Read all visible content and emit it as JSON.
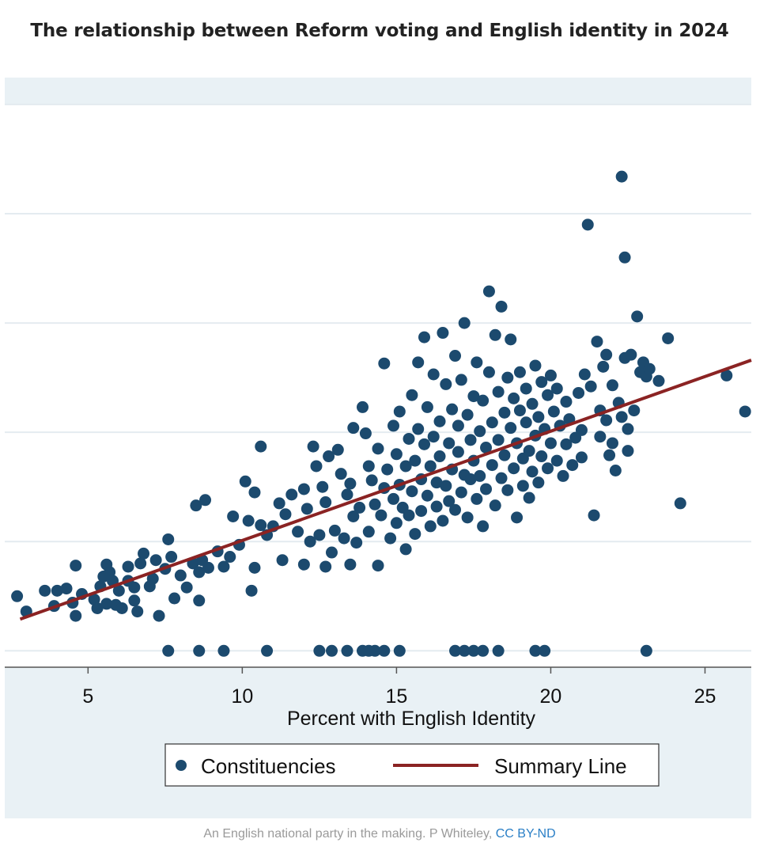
{
  "header": {
    "title": "The relationship between Reform voting and English identity in 2024"
  },
  "caption": {
    "text": "An English national party in the making. P Whiteley, ",
    "license_link": "CC BY-ND"
  },
  "colors": {
    "points": "#1c4a6e",
    "summary_line": "#8b2323",
    "figure_background": "#e9f1f5",
    "gridlines": "#e4ebf0"
  },
  "chart_data": {
    "type": "scatter",
    "title": "",
    "xlabel": "Percent with English Identity",
    "ylabel": "",
    "xlim": [
      2.3,
      26.5
    ],
    "ylim": [
      -1.5,
      50
    ],
    "xticks": [
      5,
      10,
      15,
      20,
      25
    ],
    "ygrid": [
      0,
      10,
      20,
      30,
      40,
      50
    ],
    "grid": true,
    "legend": {
      "position": "bottom",
      "entries": [
        "Constituencies",
        "Summary Line"
      ]
    },
    "series": [
      {
        "name": "Constituencies",
        "kind": "points",
        "points": [
          [
            2.7,
            5
          ],
          [
            3.0,
            3.6
          ],
          [
            3.6,
            5.5
          ],
          [
            3.9,
            4.1
          ],
          [
            4.0,
            5.5
          ],
          [
            4.3,
            5.7
          ],
          [
            4.5,
            4.4
          ],
          [
            4.6,
            7.8
          ],
          [
            4.6,
            3.2
          ],
          [
            4.8,
            5.2
          ],
          [
            5.2,
            4.7
          ],
          [
            5.3,
            3.9
          ],
          [
            5.4,
            5.9
          ],
          [
            5.5,
            6.8
          ],
          [
            5.6,
            4.3
          ],
          [
            5.6,
            7.9
          ],
          [
            5.7,
            7.2
          ],
          [
            5.8,
            6.4
          ],
          [
            5.9,
            4.2
          ],
          [
            6.0,
            5.5
          ],
          [
            6.1,
            3.9
          ],
          [
            6.3,
            6.4
          ],
          [
            6.3,
            7.7
          ],
          [
            6.5,
            5.8
          ],
          [
            6.5,
            4.6
          ],
          [
            6.6,
            3.6
          ],
          [
            6.7,
            8.0
          ],
          [
            6.8,
            8.9
          ],
          [
            7.0,
            5.9
          ],
          [
            7.1,
            6.6
          ],
          [
            7.2,
            8.3
          ],
          [
            7.3,
            3.2
          ],
          [
            7.5,
            7.5
          ],
          [
            7.6,
            10.2
          ],
          [
            7.7,
            8.6
          ],
          [
            7.8,
            4.8
          ],
          [
            8.0,
            6.9
          ],
          [
            8.2,
            5.8
          ],
          [
            8.4,
            8.0
          ],
          [
            8.5,
            13.3
          ],
          [
            8.6,
            4.6
          ],
          [
            8.6,
            7.2
          ],
          [
            8.7,
            8.3
          ],
          [
            8.8,
            13.8
          ],
          [
            8.9,
            7.6
          ],
          [
            9.2,
            9.1
          ],
          [
            9.4,
            7.7
          ],
          [
            9.6,
            8.6
          ],
          [
            9.7,
            12.3
          ],
          [
            9.9,
            9.7
          ],
          [
            10.1,
            15.5
          ],
          [
            10.2,
            11.9
          ],
          [
            10.3,
            5.5
          ],
          [
            10.4,
            7.6
          ],
          [
            10.4,
            14.5
          ],
          [
            10.6,
            11.5
          ],
          [
            10.6,
            18.7
          ],
          [
            10.8,
            10.6
          ],
          [
            11.0,
            11.4
          ],
          [
            11.2,
            13.5
          ],
          [
            11.3,
            8.3
          ],
          [
            11.4,
            12.5
          ],
          [
            11.6,
            14.3
          ],
          [
            11.8,
            10.9
          ],
          [
            12.0,
            7.9
          ],
          [
            12.0,
            14.8
          ],
          [
            12.1,
            13.0
          ],
          [
            12.2,
            10.0
          ],
          [
            12.3,
            18.7
          ],
          [
            12.4,
            16.9
          ],
          [
            12.5,
            10.6
          ],
          [
            12.6,
            15.0
          ],
          [
            12.7,
            13.6
          ],
          [
            12.7,
            7.7
          ],
          [
            12.8,
            17.8
          ],
          [
            12.9,
            9.0
          ],
          [
            13.0,
            11.0
          ],
          [
            13.1,
            18.4
          ],
          [
            13.2,
            16.2
          ],
          [
            13.3,
            10.3
          ],
          [
            13.4,
            14.3
          ],
          [
            13.5,
            15.3
          ],
          [
            13.5,
            7.9
          ],
          [
            13.6,
            20.4
          ],
          [
            13.6,
            12.3
          ],
          [
            13.7,
            9.9
          ],
          [
            13.8,
            13.1
          ],
          [
            13.9,
            22.3
          ],
          [
            14.0,
            19.9
          ],
          [
            14.1,
            16.9
          ],
          [
            14.1,
            10.9
          ],
          [
            14.2,
            15.6
          ],
          [
            14.3,
            13.4
          ],
          [
            14.4,
            18.5
          ],
          [
            14.4,
            7.8
          ],
          [
            14.5,
            12.4
          ],
          [
            14.6,
            14.9
          ],
          [
            14.6,
            26.3
          ],
          [
            14.7,
            16.6
          ],
          [
            14.8,
            10.3
          ],
          [
            14.9,
            13.9
          ],
          [
            14.9,
            20.6
          ],
          [
            15.0,
            11.7
          ],
          [
            15.0,
            18.0
          ],
          [
            15.1,
            15.2
          ],
          [
            15.1,
            21.9
          ],
          [
            15.2,
            13.1
          ],
          [
            15.3,
            9.3
          ],
          [
            15.3,
            16.9
          ],
          [
            15.4,
            19.4
          ],
          [
            15.4,
            12.4
          ],
          [
            15.5,
            14.6
          ],
          [
            15.5,
            23.4
          ],
          [
            15.6,
            17.4
          ],
          [
            15.6,
            10.7
          ],
          [
            15.7,
            20.3
          ],
          [
            15.7,
            26.4
          ],
          [
            15.8,
            15.7
          ],
          [
            15.8,
            12.8
          ],
          [
            15.9,
            18.9
          ],
          [
            15.9,
            28.7
          ],
          [
            16.0,
            14.2
          ],
          [
            16.0,
            22.3
          ],
          [
            16.1,
            16.9
          ],
          [
            16.1,
            11.4
          ],
          [
            16.2,
            19.6
          ],
          [
            16.2,
            25.3
          ],
          [
            16.3,
            15.4
          ],
          [
            16.3,
            13.2
          ],
          [
            16.4,
            21.0
          ],
          [
            16.4,
            17.8
          ],
          [
            16.5,
            29.1
          ],
          [
            16.5,
            11.9
          ],
          [
            16.6,
            24.4
          ],
          [
            16.6,
            15.1
          ],
          [
            16.7,
            19.0
          ],
          [
            16.7,
            13.7
          ],
          [
            16.8,
            22.1
          ],
          [
            16.8,
            16.6
          ],
          [
            16.9,
            27.0
          ],
          [
            16.9,
            12.9
          ],
          [
            17.0,
            20.6
          ],
          [
            17.0,
            18.2
          ],
          [
            17.1,
            14.5
          ],
          [
            17.1,
            24.8
          ],
          [
            17.2,
            16.1
          ],
          [
            17.2,
            30.0
          ],
          [
            17.3,
            21.6
          ],
          [
            17.3,
            12.2
          ],
          [
            17.4,
            19.3
          ],
          [
            17.4,
            15.7
          ],
          [
            17.5,
            23.3
          ],
          [
            17.5,
            17.4
          ],
          [
            17.6,
            13.9
          ],
          [
            17.6,
            26.4
          ],
          [
            17.7,
            20.1
          ],
          [
            17.7,
            16.0
          ],
          [
            17.8,
            22.9
          ],
          [
            17.8,
            11.4
          ],
          [
            17.9,
            18.6
          ],
          [
            17.9,
            14.8
          ],
          [
            18.0,
            25.5
          ],
          [
            18.0,
            32.9
          ],
          [
            18.1,
            20.9
          ],
          [
            18.1,
            17.0
          ],
          [
            18.2,
            28.9
          ],
          [
            18.2,
            13.3
          ],
          [
            18.3,
            23.7
          ],
          [
            18.3,
            19.3
          ],
          [
            18.4,
            15.8
          ],
          [
            18.4,
            31.5
          ],
          [
            18.5,
            21.8
          ],
          [
            18.5,
            17.9
          ],
          [
            18.6,
            25.0
          ],
          [
            18.6,
            14.7
          ],
          [
            18.7,
            20.4
          ],
          [
            18.7,
            28.5
          ],
          [
            18.8,
            16.7
          ],
          [
            18.8,
            23.1
          ],
          [
            18.9,
            19.0
          ],
          [
            18.9,
            12.2
          ],
          [
            19.0,
            22.0
          ],
          [
            19.0,
            25.5
          ],
          [
            19.1,
            17.6
          ],
          [
            19.1,
            15.1
          ],
          [
            19.2,
            20.9
          ],
          [
            19.2,
            24.0
          ],
          [
            19.3,
            18.3
          ],
          [
            19.3,
            14.0
          ],
          [
            19.4,
            22.6
          ],
          [
            19.4,
            16.4
          ],
          [
            19.5,
            26.1
          ],
          [
            19.5,
            19.7
          ],
          [
            19.6,
            21.4
          ],
          [
            19.6,
            15.4
          ],
          [
            19.7,
            24.6
          ],
          [
            19.7,
            17.8
          ],
          [
            19.8,
            20.3
          ],
          [
            19.9,
            23.4
          ],
          [
            19.9,
            16.7
          ],
          [
            20.0,
            25.2
          ],
          [
            20.0,
            19.0
          ],
          [
            20.1,
            21.9
          ],
          [
            20.2,
            17.4
          ],
          [
            20.2,
            24.0
          ],
          [
            20.3,
            20.6
          ],
          [
            20.4,
            16.0
          ],
          [
            20.5,
            22.8
          ],
          [
            20.5,
            18.9
          ],
          [
            20.6,
            21.2
          ],
          [
            20.7,
            17.0
          ],
          [
            20.8,
            19.5
          ],
          [
            20.9,
            23.6
          ],
          [
            21.0,
            20.2
          ],
          [
            21.0,
            17.7
          ],
          [
            21.1,
            25.3
          ],
          [
            21.2,
            39.0
          ],
          [
            21.3,
            24.2
          ],
          [
            21.4,
            12.4
          ],
          [
            21.5,
            28.3
          ],
          [
            21.6,
            22.0
          ],
          [
            21.6,
            19.6
          ],
          [
            21.7,
            26.0
          ],
          [
            21.8,
            27.1
          ],
          [
            21.8,
            21.1
          ],
          [
            21.9,
            17.9
          ],
          [
            22.0,
            24.3
          ],
          [
            22.0,
            19.0
          ],
          [
            22.1,
            16.5
          ],
          [
            22.2,
            22.7
          ],
          [
            22.3,
            43.4
          ],
          [
            22.3,
            21.4
          ],
          [
            22.4,
            26.8
          ],
          [
            22.4,
            36.0
          ],
          [
            22.5,
            20.3
          ],
          [
            22.5,
            18.3
          ],
          [
            22.6,
            27.1
          ],
          [
            22.7,
            22.0
          ],
          [
            22.8,
            30.6
          ],
          [
            22.9,
            25.5
          ],
          [
            23.0,
            26.4
          ],
          [
            23.1,
            25.1
          ],
          [
            23.2,
            25.8
          ],
          [
            23.5,
            24.7
          ],
          [
            23.8,
            28.6
          ],
          [
            24.2,
            13.5
          ],
          [
            25.7,
            25.2
          ],
          [
            26.3,
            21.9
          ],
          [
            7.6,
            0
          ],
          [
            8.6,
            0
          ],
          [
            9.4,
            0
          ],
          [
            10.8,
            0
          ],
          [
            12.5,
            0
          ],
          [
            12.9,
            0
          ],
          [
            13.4,
            0
          ],
          [
            13.9,
            0
          ],
          [
            14.1,
            0
          ],
          [
            14.3,
            0
          ],
          [
            14.6,
            0
          ],
          [
            15.1,
            0
          ],
          [
            16.9,
            0
          ],
          [
            17.2,
            0
          ],
          [
            17.5,
            0
          ],
          [
            17.8,
            0
          ],
          [
            18.3,
            0
          ],
          [
            19.5,
            0
          ],
          [
            19.8,
            0
          ],
          [
            23.1,
            0
          ]
        ]
      },
      {
        "name": "Summary Line",
        "kind": "line",
        "points": [
          [
            2.8,
            2.9
          ],
          [
            26.5,
            26.6
          ]
        ]
      }
    ]
  }
}
